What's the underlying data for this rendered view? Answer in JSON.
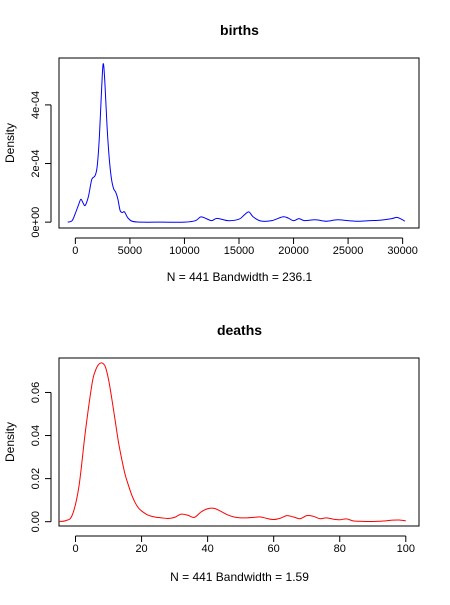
{
  "chart_data": [
    {
      "type": "line",
      "title": "births",
      "xlabel": "N = 441   Bandwidth = 236.1",
      "ylabel": "Density",
      "color": "#0000ff",
      "x_ticks": [
        "0",
        "5000",
        "10000",
        "15000",
        "20000",
        "25000",
        "30000"
      ],
      "x_tick_values": [
        0,
        5000,
        10000,
        15000,
        20000,
        25000,
        30000
      ],
      "y_ticks": [
        "0e+00",
        "2e-04",
        "4e-04"
      ],
      "y_tick_values": [
        0,
        0.0002,
        0.0004
      ],
      "xlim": [
        -1500,
        31500
      ],
      "ylim": [
        -2e-05,
        0.00056
      ],
      "series": [
        {
          "x": [
            -700,
            -300,
            0,
            300,
            500,
            700,
            900,
            1200,
            1500,
            1800,
            2000,
            2200,
            2400,
            2550,
            2700,
            2900,
            3100,
            3300,
            3500,
            3700,
            3900,
            4100,
            4300,
            4500,
            4800,
            5200,
            6000,
            8000,
            10000,
            11000,
            11500,
            12000,
            12500,
            13000,
            14000,
            15000,
            15500,
            15900,
            16300,
            17000,
            18000,
            19000,
            19500,
            20000,
            20500,
            21000,
            22000,
            23000,
            24000,
            25000,
            26000,
            27000,
            28000,
            29000,
            29500,
            30000,
            30200
          ],
          "y": [
            0,
            5e-06,
            3e-05,
            6e-05,
            7.8e-05,
            6.6e-05,
            5.7e-05,
            8.8e-05,
            0.000145,
            0.000158,
            0.00019,
            0.00029,
            0.00045,
            0.00054,
            0.00048,
            0.00033,
            0.00022,
            0.00015,
            0.000115,
            0.000102,
            7.8e-05,
            4e-05,
            3.3e-05,
            3.5e-05,
            1.5e-05,
            3e-06,
            0,
            0,
            0,
            5e-06,
            1.8e-05,
            1.2e-05,
            5e-06,
            1.3e-05,
            5e-06,
            1e-05,
            2.5e-05,
            3.5e-05,
            1.8e-05,
            4e-06,
            5e-06,
            1.8e-05,
            1.4e-05,
            5e-06,
            1.2e-05,
            5e-06,
            8e-06,
            3e-06,
            8e-06,
            5e-06,
            3e-06,
            5e-06,
            7e-06,
            1.2e-05,
            1.6e-05,
            8e-06,
            3e-06
          ]
        }
      ]
    },
    {
      "type": "line",
      "title": "deaths",
      "xlabel": "N = 441   Bandwidth = 1.59",
      "ylabel": "Density",
      "color": "#ff0000",
      "x_ticks": [
        "0",
        "20",
        "40",
        "60",
        "80",
        "100"
      ],
      "x_tick_values": [
        0,
        20,
        40,
        60,
        80,
        100
      ],
      "y_ticks": [
        "0.00",
        "0.02",
        "0.04",
        "0.06"
      ],
      "y_tick_values": [
        0,
        0.02,
        0.04,
        0.06
      ],
      "xlim": [
        -5,
        104
      ],
      "ylim": [
        -0.002,
        0.076
      ],
      "series": [
        {
          "x": [
            -5,
            -3,
            -1,
            1,
            3,
            5,
            6,
            7,
            8,
            9,
            10,
            11,
            12,
            13,
            14,
            15,
            16,
            17,
            18,
            19,
            20,
            22,
            24,
            26,
            28,
            30,
            32,
            34,
            36,
            38,
            40,
            42,
            44,
            46,
            48,
            50,
            52,
            54,
            56,
            58,
            60,
            62,
            64,
            66,
            68,
            70,
            72,
            74,
            76,
            78,
            80,
            82,
            84,
            86,
            88,
            90,
            92,
            94,
            96,
            98,
            100
          ],
          "y": [
            0.0001,
            0.0005,
            0.003,
            0.016,
            0.042,
            0.064,
            0.07,
            0.073,
            0.0737,
            0.072,
            0.066,
            0.057,
            0.047,
            0.037,
            0.029,
            0.022,
            0.017,
            0.0125,
            0.009,
            0.0065,
            0.005,
            0.003,
            0.0022,
            0.0018,
            0.0015,
            0.002,
            0.0035,
            0.003,
            0.002,
            0.0045,
            0.006,
            0.0062,
            0.0048,
            0.0032,
            0.0022,
            0.0018,
            0.0018,
            0.002,
            0.0022,
            0.0015,
            0.001,
            0.0016,
            0.0028,
            0.0022,
            0.0014,
            0.0028,
            0.0025,
            0.0014,
            0.0018,
            0.0012,
            0.0009,
            0.0013,
            0.0004,
            0.0002,
            0.0001,
            0.0001,
            0.0002,
            0.0004,
            0.0007,
            0.0008,
            0.0004
          ]
        }
      ]
    }
  ]
}
